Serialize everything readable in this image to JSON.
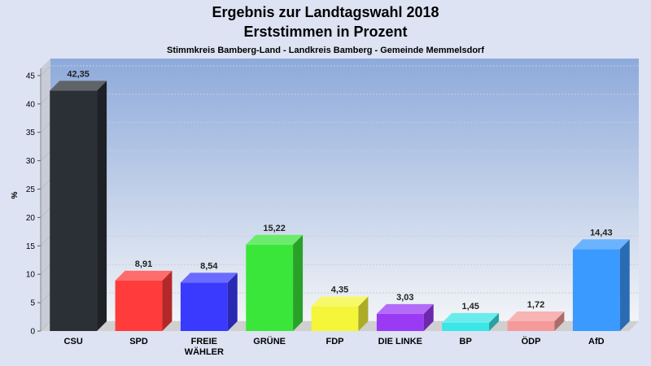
{
  "chart_data": {
    "type": "bar",
    "title": "Ergebnis zur Landtagswahl 2018",
    "title2": "Erststimmen in Prozent",
    "subtitle": "Stimmkreis Bamberg-Land - Landkreis Bamberg - Gemeinde Memmelsdorf",
    "ylabel": "%",
    "ylim": [
      0,
      48
    ],
    "yticks": [
      0,
      5,
      10,
      15,
      20,
      25,
      30,
      35,
      40,
      45
    ],
    "grid": true,
    "categories": [
      [
        "CSU"
      ],
      [
        "SPD"
      ],
      [
        "FREIE",
        "WÄHLER"
      ],
      [
        "GRÜNE"
      ],
      [
        "FDP"
      ],
      [
        "DIE LINKE"
      ],
      [
        "BP"
      ],
      [
        "ÖDP"
      ],
      [
        "AfD"
      ]
    ],
    "values": [
      42.35,
      8.91,
      8.54,
      15.22,
      4.35,
      3.03,
      1.45,
      1.72,
      14.43
    ],
    "value_labels": [
      "42,35",
      "8,91",
      "8,54",
      "15,22",
      "4,35",
      "3,03",
      "1,45",
      "1,72",
      "14,43"
    ],
    "colors": [
      "#2b2f36",
      "#ff3b3b",
      "#3a3aff",
      "#3be63b",
      "#f5f53a",
      "#9a3af5",
      "#3ae6e6",
      "#f59a9a",
      "#3a9aff"
    ],
    "plot_colors": {
      "background_top": "#8eaadb",
      "background_bottom": "#f2f4f7",
      "floor": "#d0d0d0"
    }
  }
}
